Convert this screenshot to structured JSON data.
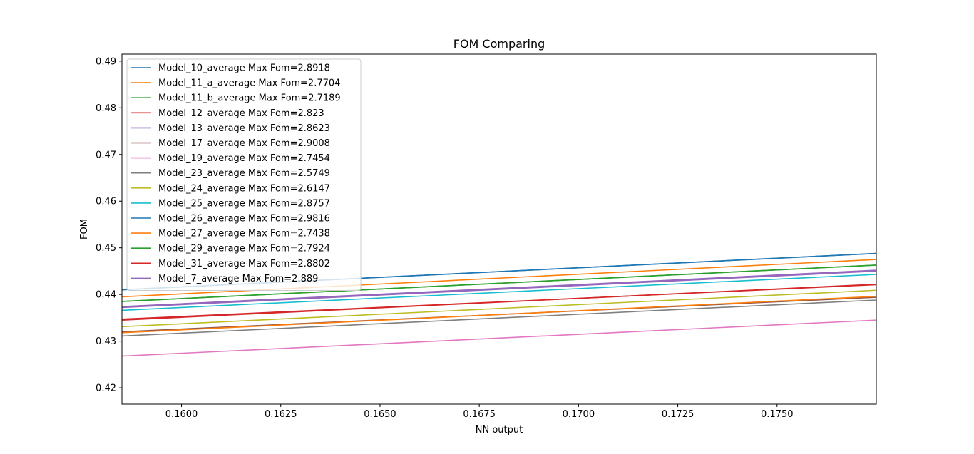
{
  "chart_data": {
    "type": "line",
    "title": "FOM Comparing",
    "xlabel": "NN output",
    "ylabel": "FOM",
    "xlim": [
      0.1585,
      0.1775
    ],
    "ylim": [
      0.4165,
      0.4915
    ],
    "xticks": [
      0.16,
      0.1625,
      0.165,
      0.1675,
      0.17,
      0.1725,
      0.175
    ],
    "xtick_labels": [
      "0.1600",
      "0.1625",
      "0.1650",
      "0.1675",
      "0.1700",
      "0.1725",
      "0.1750"
    ],
    "yticks": [
      0.42,
      0.43,
      0.44,
      0.45,
      0.46,
      0.47,
      0.48,
      0.49
    ],
    "ytick_labels": [
      "0.42",
      "0.43",
      "0.44",
      "0.45",
      "0.46",
      "0.47",
      "0.48",
      "0.49"
    ],
    "legend_position": "top-left",
    "grid": false,
    "series": [
      {
        "name": "Model_10_average  Max Fom=2.8918",
        "color": "#1f77b4",
        "x": [
          0.1585,
          0.1775
        ],
        "y": [
          0.441,
          0.4488
        ]
      },
      {
        "name": "Model_11_a_average  Max Fom=2.7704",
        "color": "#ff7f0e",
        "x": [
          0.1585,
          0.1775
        ],
        "y": [
          0.4395,
          0.4475
        ]
      },
      {
        "name": "Model_11_b_average  Max Fom=2.7189",
        "color": "#2ca02c",
        "x": [
          0.1585,
          0.1775
        ],
        "y": [
          0.4385,
          0.4463
        ]
      },
      {
        "name": "Model_12_average  Max Fom=2.823",
        "color": "#d62728",
        "x": [
          0.1585,
          0.1775
        ],
        "y": [
          0.4347,
          0.4421
        ]
      },
      {
        "name": "Model_13_average  Max Fom=2.8623",
        "color": "#9467bd",
        "x": [
          0.1585,
          0.1775
        ],
        "y": [
          0.4372,
          0.445
        ]
      },
      {
        "name": "Model_17_average  Max Fom=2.9008",
        "color": "#8c564b",
        "x": [
          0.1585,
          0.1775
        ],
        "y": [
          0.432,
          0.4394
        ]
      },
      {
        "name": "Model_19_average  Max Fom=2.7454",
        "color": "#e377c2",
        "x": [
          0.1585,
          0.1775
        ],
        "y": [
          0.4268,
          0.4345
        ]
      },
      {
        "name": "Model_23_average  Max Fom=2.5749",
        "color": "#7f7f7f",
        "x": [
          0.1585,
          0.1775
        ],
        "y": [
          0.4311,
          0.4388
        ]
      },
      {
        "name": "Model_24_average  Max Fom=2.6147",
        "color": "#bcbd22",
        "x": [
          0.1585,
          0.1775
        ],
        "y": [
          0.4331,
          0.4409
        ]
      },
      {
        "name": "Model_25_average  Max Fom=2.8757",
        "color": "#17becf",
        "x": [
          0.1585,
          0.1775
        ],
        "y": [
          0.4366,
          0.4443
        ]
      },
      {
        "name": "Model_26_average  Max Fom=2.9816",
        "color": "#1f77b4",
        "x": [
          0.1585,
          0.1775
        ],
        "y": [
          0.441,
          0.4488
        ]
      },
      {
        "name": "Model_27_average  Max Fom=2.7438",
        "color": "#ff7f0e",
        "x": [
          0.1585,
          0.1775
        ],
        "y": [
          0.4318,
          0.4396
        ]
      },
      {
        "name": "Model_29_average  Max Fom=2.7924",
        "color": "#2ca02c",
        "x": [
          0.1585,
          0.1775
        ],
        "y": [
          0.4385,
          0.4463
        ]
      },
      {
        "name": "Model_31_average  Max Fom=2.8802",
        "color": "#d62728",
        "x": [
          0.1585,
          0.1775
        ],
        "y": [
          0.4345,
          0.4422
        ]
      },
      {
        "name": "Model_7_average  Max Fom=2.889",
        "color": "#9467bd",
        "x": [
          0.1585,
          0.1775
        ],
        "y": [
          0.4374,
          0.4452
        ]
      }
    ]
  }
}
